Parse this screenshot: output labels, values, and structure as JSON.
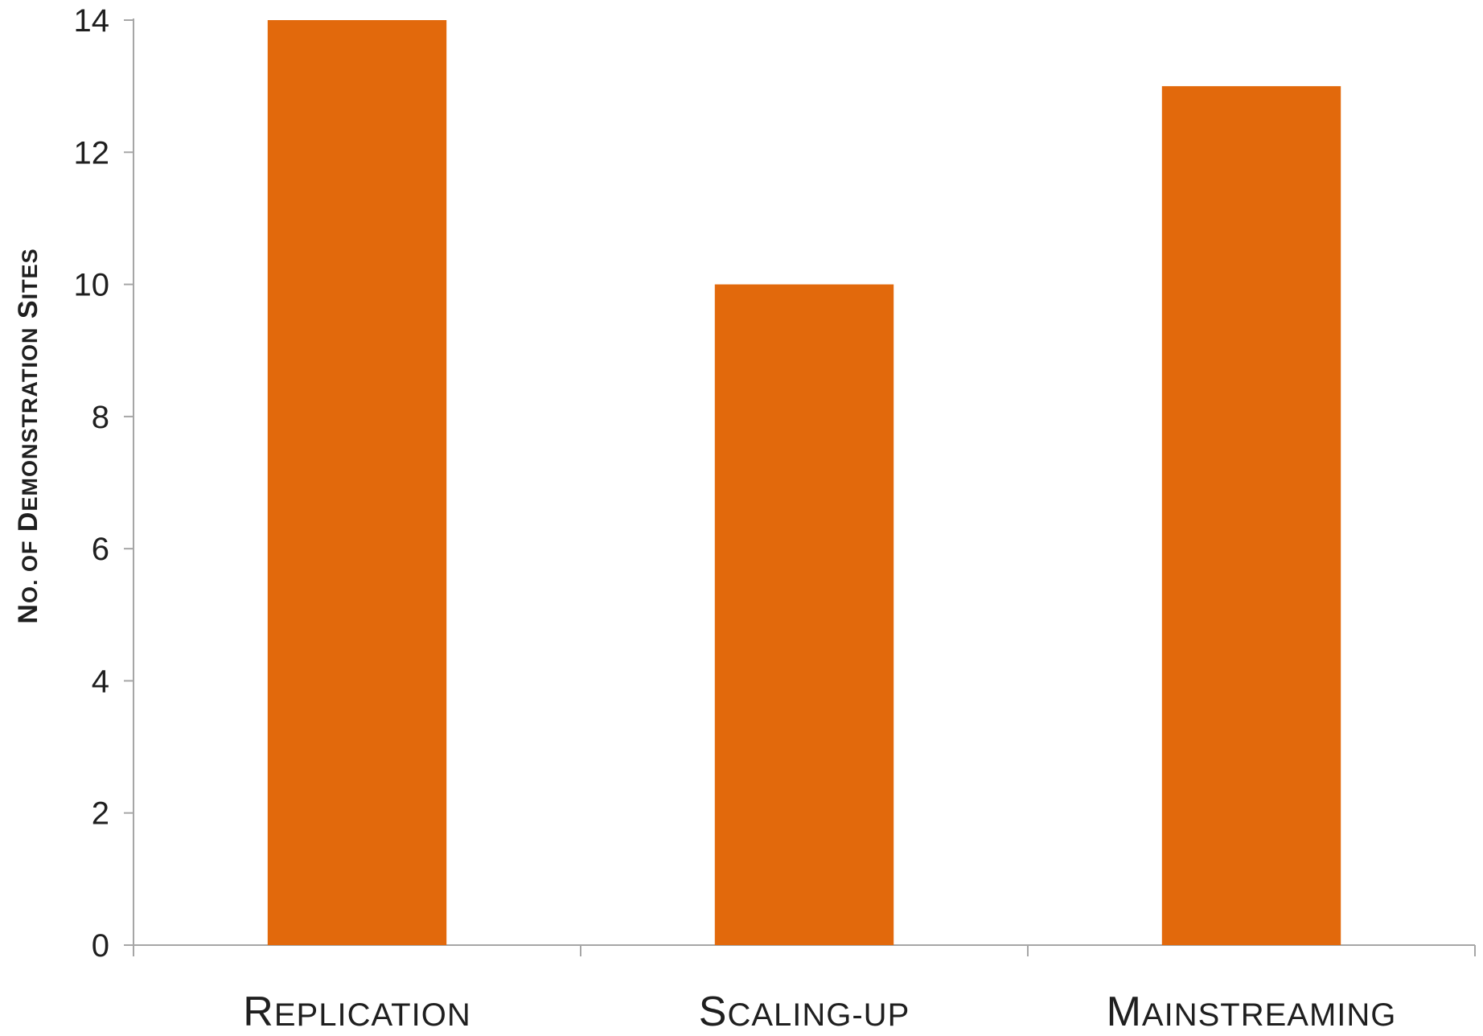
{
  "chart_data": {
    "type": "bar",
    "title": "",
    "xlabel": "",
    "ylabel": "No. of Demonstration Sites",
    "categories": [
      "Replication",
      "Scaling-up",
      "Mainstreaming"
    ],
    "series": [
      {
        "values": [
          14,
          10,
          13
        ]
      }
    ],
    "ylim": [
      0,
      14
    ],
    "yticks": [
      0,
      2,
      4,
      6,
      8,
      10,
      12,
      14
    ],
    "grid": false,
    "legend": "none",
    "colors": {
      "bar": "#e2690c",
      "axis": "#a6a6a6",
      "text": "#1f1f1f"
    },
    "small_caps": true
  }
}
